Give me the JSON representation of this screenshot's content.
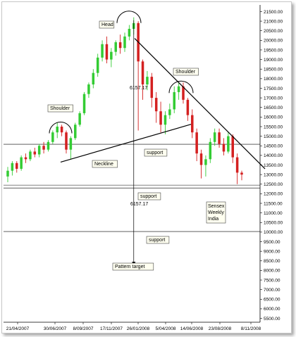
{
  "chart_data": {
    "type": "candlestick",
    "source_label": [
      "Sensex",
      "Weekly",
      "India"
    ],
    "x_ticks": [
      "21/04/2007",
      "30/06/2007",
      "8/09/2007",
      "17/11/2007",
      "26/01/2008",
      "5/04/2008",
      "14/06/2008",
      "23/08/2008",
      "8/11/2008"
    ],
    "y_ticks": [
      "21500.00",
      "21000.00",
      "20500.00",
      "20000.00",
      "19500.00",
      "19000.00",
      "18500.00",
      "18000.00",
      "17500.00",
      "17000.00",
      "16500.00",
      "16000.00",
      "15500.00",
      "15000.00",
      "14500.00",
      "14000.00",
      "13500.00",
      "13000.00",
      "12500.00",
      "12000.00",
      "11500.00",
      "11000.00",
      "10500.00",
      "10000.00",
      "9500.00",
      "9000.00",
      "8500.00",
      "8000.00",
      "7500.00",
      "7000.00",
      "6500.00",
      "6000.00",
      "5500.00"
    ],
    "ylim": [
      5300,
      21700
    ],
    "annotations": {
      "head": "Head",
      "shoulder_left": "Shoulder",
      "shoulder_right": "Shoulder",
      "neckline": "Neckline",
      "support_1": "support",
      "support_2": "support",
      "support_3": "support",
      "pattern_target": "Pattern target",
      "measure_top": "6157.17",
      "measure_bottom": "6157.17"
    },
    "support_levels": [
      14580,
      12300,
      10030
    ],
    "candles": [
      {
        "o": 12900,
        "h": 13400,
        "l": 12600,
        "c": 13200
      },
      {
        "o": 13200,
        "h": 13700,
        "l": 12950,
        "c": 13600
      },
      {
        "o": 13600,
        "h": 13700,
        "l": 13100,
        "c": 13300
      },
      {
        "o": 13300,
        "h": 14000,
        "l": 13200,
        "c": 13900
      },
      {
        "o": 13900,
        "h": 14100,
        "l": 13600,
        "c": 13800
      },
      {
        "o": 13800,
        "h": 14300,
        "l": 13700,
        "c": 14200
      },
      {
        "o": 14200,
        "h": 14400,
        "l": 13900,
        "c": 14050
      },
      {
        "o": 14050,
        "h": 14600,
        "l": 13900,
        "c": 14500
      },
      {
        "o": 14500,
        "h": 14700,
        "l": 14100,
        "c": 14300
      },
      {
        "o": 14300,
        "h": 14800,
        "l": 14200,
        "c": 14700
      },
      {
        "o": 14700,
        "h": 15300,
        "l": 14600,
        "c": 15200
      },
      {
        "o": 15200,
        "h": 15700,
        "l": 14900,
        "c": 15500
      },
      {
        "o": 15500,
        "h": 15600,
        "l": 15000,
        "c": 15200
      },
      {
        "o": 15200,
        "h": 15300,
        "l": 14100,
        "c": 14300
      },
      {
        "o": 14300,
        "h": 15000,
        "l": 13800,
        "c": 14900
      },
      {
        "o": 14900,
        "h": 15700,
        "l": 14800,
        "c": 15600
      },
      {
        "o": 15600,
        "h": 16300,
        "l": 15500,
        "c": 16200
      },
      {
        "o": 16200,
        "h": 17300,
        "l": 16100,
        "c": 17200
      },
      {
        "o": 17200,
        "h": 17800,
        "l": 17000,
        "c": 17700
      },
      {
        "o": 17700,
        "h": 18500,
        "l": 17500,
        "c": 18300
      },
      {
        "o": 18300,
        "h": 19300,
        "l": 18100,
        "c": 19100
      },
      {
        "o": 19100,
        "h": 20000,
        "l": 18900,
        "c": 19800
      },
      {
        "o": 19800,
        "h": 20200,
        "l": 18800,
        "c": 19000
      },
      {
        "o": 19000,
        "h": 19600,
        "l": 18600,
        "c": 19400
      },
      {
        "o": 19400,
        "h": 20000,
        "l": 19200,
        "c": 19900
      },
      {
        "o": 19900,
        "h": 20300,
        "l": 19300,
        "c": 19600
      },
      {
        "o": 19600,
        "h": 20400,
        "l": 19400,
        "c": 20200
      },
      {
        "o": 20200,
        "h": 20800,
        "l": 20000,
        "c": 20600
      },
      {
        "o": 20600,
        "h": 21200,
        "l": 20300,
        "c": 20900
      },
      {
        "o": 20900,
        "h": 21000,
        "l": 15300,
        "c": 18900
      },
      {
        "o": 18900,
        "h": 19000,
        "l": 16900,
        "c": 17700
      },
      {
        "o": 17700,
        "h": 18400,
        "l": 17400,
        "c": 18100
      },
      {
        "o": 18100,
        "h": 18300,
        "l": 16500,
        "c": 17000
      },
      {
        "o": 17000,
        "h": 17300,
        "l": 15700,
        "c": 16300
      },
      {
        "o": 16300,
        "h": 16800,
        "l": 15200,
        "c": 15600
      },
      {
        "o": 15600,
        "h": 16300,
        "l": 15100,
        "c": 16100
      },
      {
        "o": 16100,
        "h": 16700,
        "l": 15900,
        "c": 16400
      },
      {
        "o": 16400,
        "h": 17600,
        "l": 16200,
        "c": 17300
      },
      {
        "o": 17300,
        "h": 17800,
        "l": 16900,
        "c": 17600
      },
      {
        "o": 17600,
        "h": 17800,
        "l": 16700,
        "c": 16900
      },
      {
        "o": 16900,
        "h": 17000,
        "l": 15800,
        "c": 16100
      },
      {
        "o": 16100,
        "h": 16400,
        "l": 14900,
        "c": 15200
      },
      {
        "o": 15200,
        "h": 15400,
        "l": 13700,
        "c": 14100
      },
      {
        "o": 14100,
        "h": 14300,
        "l": 12800,
        "c": 13500
      },
      {
        "o": 13500,
        "h": 14000,
        "l": 12900,
        "c": 13800
      },
      {
        "o": 13800,
        "h": 14900,
        "l": 13600,
        "c": 14700
      },
      {
        "o": 14700,
        "h": 15400,
        "l": 14500,
        "c": 15200
      },
      {
        "o": 15200,
        "h": 15400,
        "l": 14400,
        "c": 14600
      },
      {
        "o": 14600,
        "h": 14900,
        "l": 14000,
        "c": 14200
      },
      {
        "o": 14200,
        "h": 15200,
        "l": 14100,
        "c": 15000
      },
      {
        "o": 15000,
        "h": 15100,
        "l": 13600,
        "c": 13900
      },
      {
        "o": 13900,
        "h": 14100,
        "l": 12500,
        "c": 13100
      },
      {
        "o": 13100,
        "h": 13200,
        "l": 12700,
        "c": 13000
      }
    ],
    "up_color": "#33cc33",
    "down_color": "#d42020",
    "neckline_color": "#000000",
    "trend_color": "#000000"
  }
}
